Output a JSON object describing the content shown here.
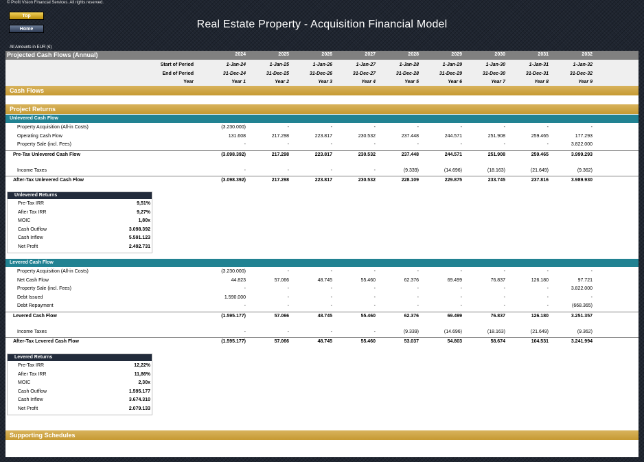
{
  "header": {
    "copyright": "© Profit Vision Financial Services. All rights reserved.",
    "btn_top": "Top",
    "btn_home": "Home",
    "title": "Real Estate Property - Acquisition Financial Model",
    "amounts": "All Amounts in  EUR (€)"
  },
  "table": {
    "title": "Projected Cash Flows (Annual)",
    "years": [
      "2024",
      "2025",
      "2026",
      "2027",
      "2028",
      "2029",
      "2030",
      "2031",
      "2032"
    ],
    "start_label": "Start of Period",
    "start": [
      "1-Jan-24",
      "1-Jan-25",
      "1-Jan-26",
      "1-Jan-27",
      "1-Jan-28",
      "1-Jan-29",
      "1-Jan-30",
      "1-Jan-31",
      "1-Jan-32"
    ],
    "end_label": "End of Period",
    "end": [
      "31-Dec-24",
      "31-Dec-25",
      "31-Dec-26",
      "31-Dec-27",
      "31-Dec-28",
      "31-Dec-29",
      "31-Dec-30",
      "31-Dec-31",
      "31-Dec-32"
    ],
    "year_label": "Year",
    "yearnum": [
      "Year 1",
      "Year 2",
      "Year 3",
      "Year 4",
      "Year 5",
      "Year 6",
      "Year 7",
      "Year 8",
      "Year 9"
    ]
  },
  "sections": {
    "cash_flows": "Cash Flows",
    "project_returns": "Project Returns",
    "supporting": "Supporting Schedules"
  },
  "unlevered": {
    "heading": "Unlevered Cash Flow",
    "rows": [
      {
        "label": "Property Acquisition (All-in Costs)",
        "values": [
          "(3.230.000)",
          "-",
          "-",
          "-",
          "-",
          "-",
          "-",
          "-",
          "-"
        ]
      },
      {
        "label": "Operating Cash Flow",
        "values": [
          "131.608",
          "217.298",
          "223.817",
          "230.532",
          "237.448",
          "244.571",
          "251.908",
          "259.465",
          "177.293"
        ]
      },
      {
        "label": "Property Sale (incl. Fees)",
        "values": [
          "-",
          "-",
          "-",
          "-",
          "-",
          "-",
          "-",
          "-",
          "3.822.000"
        ]
      }
    ],
    "pretax": {
      "label": "Pre-Tax Unlevered Cash Flow",
      "values": [
        "(3.098.392)",
        "217.298",
        "223.817",
        "230.532",
        "237.448",
        "244.571",
        "251.908",
        "259.465",
        "3.999.293"
      ]
    },
    "taxes": {
      "label": "Income Taxes",
      "values": [
        "-",
        "-",
        "-",
        "-",
        "(9.339)",
        "(14.696)",
        "(18.163)",
        "(21.649)",
        "(9.362)"
      ]
    },
    "aftertax": {
      "label": "After-Tax Unlevered Cash Flow",
      "values": [
        "(3.098.392)",
        "217.298",
        "223.817",
        "230.532",
        "228.109",
        "229.875",
        "233.745",
        "237.816",
        "3.989.930"
      ]
    }
  },
  "unlevered_returns": {
    "heading": "Unlevered Returns",
    "rows": [
      {
        "label": "Pre-Tax IRR",
        "value": "9,51%"
      },
      {
        "label": "After Tax IRR",
        "value": "9,27%"
      },
      {
        "label": "MOIC",
        "value": "1,80x"
      },
      {
        "label": "Cash Outflow",
        "value": "3.098.392"
      },
      {
        "label": "Cash Inflow",
        "value": "5.591.123"
      },
      {
        "label": "Net Profit",
        "value": "2.492.731"
      }
    ]
  },
  "levered": {
    "heading": "Levered Cash Flow",
    "rows": [
      {
        "label": "Property Acquisition (All-in Costs)",
        "values": [
          "(3.230.000)",
          "-",
          "-",
          "-",
          "-",
          "-",
          "-",
          "-",
          "-"
        ]
      },
      {
        "label": "Net Cash Flow",
        "values": [
          "44.823",
          "57.066",
          "48.745",
          "55.460",
          "62.376",
          "69.499",
          "76.837",
          "126.180",
          "97.721"
        ]
      },
      {
        "label": "Property Sale (incl. Fees)",
        "values": [
          "-",
          "-",
          "-",
          "-",
          "-",
          "-",
          "-",
          "-",
          "3.822.000"
        ]
      },
      {
        "label": "Debt Issued",
        "values": [
          "1.590.000",
          "-",
          "-",
          "-",
          "-",
          "-",
          "-",
          "-",
          "-"
        ]
      },
      {
        "label": "Debt Repayment",
        "values": [
          "-",
          "-",
          "-",
          "-",
          "-",
          "-",
          "-",
          "-",
          "(668.365)"
        ]
      }
    ],
    "pretax": {
      "label": "Levered Cash Flow",
      "values": [
        "(1.595.177)",
        "57.066",
        "48.745",
        "55.460",
        "62.376",
        "69.499",
        "76.837",
        "126.180",
        "3.251.357"
      ]
    },
    "taxes": {
      "label": "Income Taxes",
      "values": [
        "-",
        "-",
        "-",
        "-",
        "(9.339)",
        "(14.696)",
        "(18.163)",
        "(21.649)",
        "(9.362)"
      ]
    },
    "aftertax": {
      "label": "After-Tax Levered Cash Flow",
      "values": [
        "(1.595.177)",
        "57.066",
        "48.745",
        "55.460",
        "53.037",
        "54.803",
        "58.674",
        "104.531",
        "3.241.994"
      ]
    }
  },
  "levered_returns": {
    "heading": "Levered Returns",
    "rows": [
      {
        "label": "Pre-Tax IRR",
        "value": "12,22%"
      },
      {
        "label": "After Tax IRR",
        "value": "11,86%"
      },
      {
        "label": "MOIC",
        "value": "2,30x"
      },
      {
        "label": "Cash Outflow",
        "value": "1.595.177"
      },
      {
        "label": "Cash Inflow",
        "value": "3.674.310"
      },
      {
        "label": "Net Profit",
        "value": "2.079.133"
      }
    ]
  }
}
